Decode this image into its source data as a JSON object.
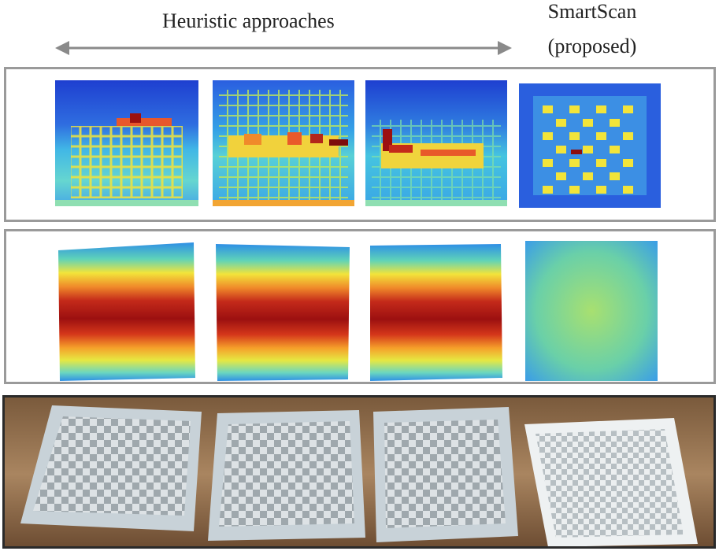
{
  "header": {
    "heuristic_label": "Heuristic approaches",
    "smartscan_title": "SmartScan",
    "smartscan_subtitle": "(proposed)"
  },
  "colors": {
    "panel_border": "#9a9a9a",
    "photo_border": "#2a2a2a",
    "arrow": "#8a8a8a",
    "jet_blue": "#1e3fd0",
    "jet_cyan": "#37c4e6",
    "jet_yellow": "#f2e43a",
    "jet_red": "#c01818"
  },
  "rows": {
    "thermal_maps": [
      "heuristic-1",
      "heuristic-2",
      "heuristic-3",
      "smartscan"
    ],
    "height_maps": [
      "heuristic-1",
      "heuristic-2",
      "heuristic-3",
      "smartscan"
    ],
    "photos": [
      "heuristic-1",
      "heuristic-2",
      "heuristic-3",
      "smartscan"
    ]
  }
}
